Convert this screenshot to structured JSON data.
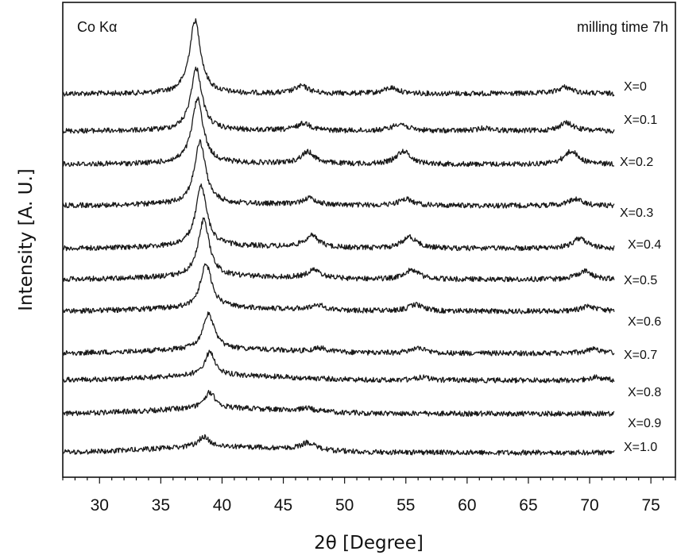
{
  "chart_data": {
    "type": "line",
    "title": "",
    "xlabel": "2θ [Degree]",
    "ylabel": "Intensity [A. U.]",
    "xlim": [
      27,
      77
    ],
    "x_ticks": [
      "30",
      "35",
      "40",
      "45",
      "50",
      "55",
      "60",
      "65",
      "70",
      "75"
    ],
    "grid": false,
    "y_ticks_shown": false,
    "annotations": {
      "radiation": "Co Kα",
      "condition": "milling time 7h"
    },
    "series": [
      {
        "name": "X=0",
        "x_range": [
          27,
          72
        ],
        "peaks": [
          {
            "x": 37.8,
            "h": 1.0
          },
          {
            "x": 46.5,
            "h": 0.1
          },
          {
            "x": 53.8,
            "h": 0.08
          },
          {
            "x": 68.0,
            "h": 0.09
          }
        ]
      },
      {
        "name": "X=0.1",
        "x_range": [
          27,
          72
        ],
        "peaks": [
          {
            "x": 37.9,
            "h": 0.85
          },
          {
            "x": 46.7,
            "h": 0.1
          },
          {
            "x": 54.5,
            "h": 0.1
          },
          {
            "x": 61.5,
            "h": 0.04
          },
          {
            "x": 68.1,
            "h": 0.11
          }
        ]
      },
      {
        "name": "X=0.2",
        "x_range": [
          27,
          72
        ],
        "peaks": [
          {
            "x": 38.0,
            "h": 0.88
          },
          {
            "x": 47.0,
            "h": 0.16
          },
          {
            "x": 54.8,
            "h": 0.18
          },
          {
            "x": 68.5,
            "h": 0.18
          }
        ]
      },
      {
        "name": "X=0.3",
        "x_range": [
          27,
          72
        ],
        "peaks": [
          {
            "x": 38.2,
            "h": 0.85
          },
          {
            "x": 47.1,
            "h": 0.09
          },
          {
            "x": 55.0,
            "h": 0.09
          },
          {
            "x": 68.8,
            "h": 0.09
          }
        ]
      },
      {
        "name": "X=0.4",
        "x_range": [
          27,
          72
        ],
        "peaks": [
          {
            "x": 38.3,
            "h": 0.82
          },
          {
            "x": 47.3,
            "h": 0.16
          },
          {
            "x": 55.3,
            "h": 0.16
          },
          {
            "x": 69.2,
            "h": 0.14
          }
        ]
      },
      {
        "name": "X=0.5",
        "x_range": [
          27,
          72
        ],
        "peaks": [
          {
            "x": 38.5,
            "h": 0.78
          },
          {
            "x": 47.5,
            "h": 0.11
          },
          {
            "x": 55.5,
            "h": 0.13
          },
          {
            "x": 69.6,
            "h": 0.12
          }
        ]
      },
      {
        "name": "X=0.6",
        "x_range": [
          27,
          72
        ],
        "peaks": [
          {
            "x": 38.7,
            "h": 0.6
          },
          {
            "x": 47.8,
            "h": 0.07
          },
          {
            "x": 55.8,
            "h": 0.09
          },
          {
            "x": 69.9,
            "h": 0.07
          }
        ]
      },
      {
        "name": "X=0.7",
        "x_range": [
          27,
          72
        ],
        "peaks": [
          {
            "x": 38.9,
            "h": 0.48
          },
          {
            "x": 48.0,
            "h": 0.05
          },
          {
            "x": 56.0,
            "h": 0.07
          },
          {
            "x": 70.3,
            "h": 0.06
          }
        ]
      },
      {
        "name": "X=0.8",
        "x_range": [
          27,
          72
        ],
        "peaks": [
          {
            "x": 39.0,
            "h": 0.32
          },
          {
            "x": 56.3,
            "h": 0.04
          },
          {
            "x": 70.5,
            "h": 0.04
          }
        ]
      },
      {
        "name": "X=0.9",
        "x_range": [
          27,
          72
        ],
        "peaks": [
          {
            "x": 39.0,
            "h": 0.22
          },
          {
            "x": 47.0,
            "h": 0.04
          }
        ]
      },
      {
        "name": "X=1.0",
        "x_range": [
          27,
          72
        ],
        "peaks": [
          {
            "x": 38.5,
            "h": 0.14
          },
          {
            "x": 47.0,
            "h": 0.1
          }
        ]
      }
    ]
  }
}
